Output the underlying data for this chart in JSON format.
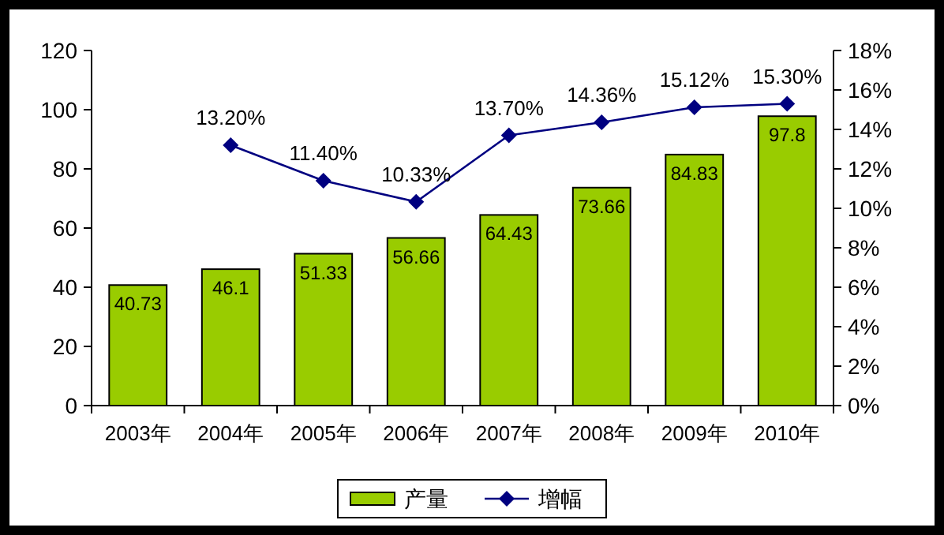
{
  "chart_data": {
    "type": "bar",
    "categories": [
      "2003年",
      "2004年",
      "2005年",
      "2006年",
      "2007年",
      "2008年",
      "2009年",
      "2010年"
    ],
    "series": [
      {
        "name": "产量",
        "color": "#99cc00",
        "values": [
          40.73,
          46.1,
          51.33,
          56.66,
          64.43,
          73.66,
          84.83,
          97.8
        ]
      },
      {
        "name": "增幅",
        "type": "line",
        "axis": "y2",
        "color": "#000080",
        "marker": "diamond",
        "values": [
          null,
          13.2,
          11.4,
          10.33,
          13.7,
          14.36,
          15.12,
          15.3
        ],
        "value_labels": [
          null,
          "13.20%",
          "11.40%",
          "10.33%",
          "13.70%",
          "14.36%",
          "15.12%",
          "15.30%"
        ]
      }
    ],
    "data_labels": true,
    "ylim": [
      0,
      120
    ],
    "yticks": [
      0,
      20,
      40,
      60,
      80,
      100,
      120
    ],
    "y2lim": [
      0,
      18
    ],
    "y2ticks": [
      {
        "value": 0,
        "label": "0%"
      },
      {
        "value": 2,
        "label": "2%"
      },
      {
        "value": 4,
        "label": "4%"
      },
      {
        "value": 6,
        "label": "6%"
      },
      {
        "value": 8,
        "label": "8%"
      },
      {
        "value": 10,
        "label": "10%"
      },
      {
        "value": 12,
        "label": "12%"
      },
      {
        "value": 14,
        "label": "14%"
      },
      {
        "value": 16,
        "label": "16%"
      },
      {
        "value": 18,
        "label": "18%"
      }
    ],
    "grid": false,
    "legend": "bottom"
  }
}
